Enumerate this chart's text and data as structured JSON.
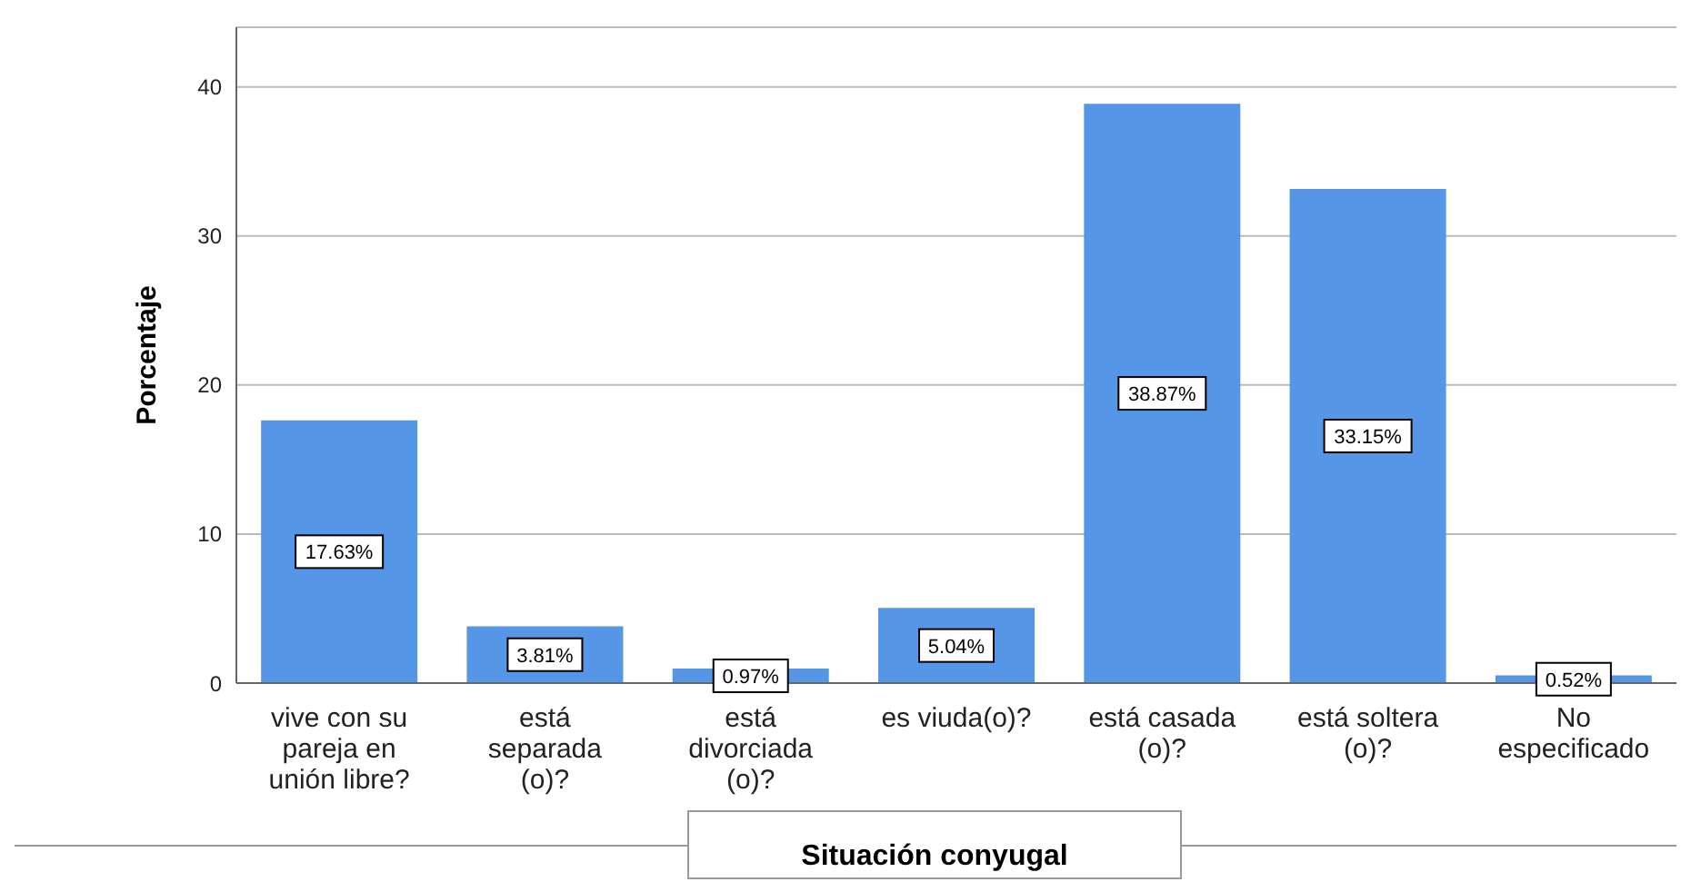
{
  "chart_data": {
    "type": "bar",
    "xlabel": "Situación conyugal",
    "ylabel": "Porcentaje",
    "categories": [
      "vive con su pareja en unión libre?",
      "está separada (o)?",
      "está divorciada (o)?",
      "es viuda(o)?",
      "está casada (o)?",
      "está soltera (o)?",
      "No especificado"
    ],
    "values": [
      17.63,
      3.81,
      0.97,
      5.04,
      38.87,
      33.15,
      0.52
    ],
    "value_labels": [
      "17.63%",
      "3.81%",
      "0.97%",
      "5.04%",
      "38.87%",
      "33.15%",
      "0.52%"
    ],
    "color": "#5596e6",
    "ylim": [
      0,
      44
    ],
    "yticks": [
      0,
      10,
      20,
      30,
      40
    ],
    "grid": "y",
    "legend": false
  }
}
